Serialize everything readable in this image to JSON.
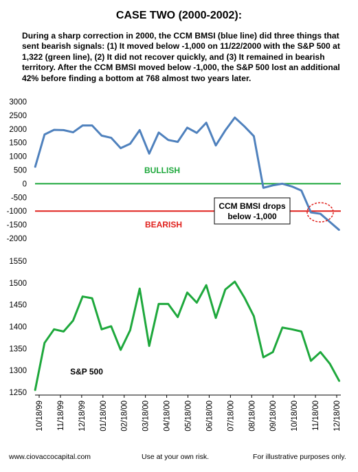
{
  "header": {
    "title": "CASE TWO (2000-2002):",
    "description": "During a sharp correction in 2000, the CCM BMSI (blue line) did three things that sent bearish signals:  (1) It moved below -1,000 on 11/22/2000 with the S&P 500 at 1,322 (green line), (2) It did not recover quickly, and (3) It remained in bearish territory.  After the CCM BMSI moved below -1,000, the S&P 500 lost an additional 42% before finding a bottom at 768 almost two years later."
  },
  "footer": {
    "left": "www.ciovaccocapital.com",
    "center": "Use at your own risk.",
    "right": "For illustrative purposes only."
  },
  "colors": {
    "bmsi_line": "#4f81bd",
    "sp500_line": "#1ea83c",
    "zero_line": "#1ea83c",
    "bearish_line": "#e0201c",
    "bullish_text": "#1ea83c",
    "bearish_text": "#e0201c"
  },
  "chart_data": [
    {
      "type": "line",
      "series": [
        {
          "values": [
            600,
            1800,
            1970,
            1960,
            1880,
            2130,
            2130,
            1760,
            1680,
            1300,
            1460,
            1960,
            1100,
            1870,
            1600,
            1530,
            2050,
            1860,
            2230,
            1400,
            1950,
            2420,
            2100,
            1740,
            -150,
            -60,
            0,
            -100,
            -250,
            -1050,
            -1100,
            -1400,
            -1700
          ]
        }
      ],
      "ylim": [
        -2000,
        3000
      ],
      "yticks": [
        "3000",
        "2500",
        "2000",
        "1500",
        "1000",
        "500",
        "0",
        "-500",
        "-1000",
        "-1500",
        "-2000"
      ],
      "reference_lines": [
        {
          "value": 0,
          "label": "BULLISH"
        },
        {
          "value": -1000,
          "label": "BEARISH"
        }
      ],
      "annotation": {
        "text_line1": "CCM BMSI drops",
        "text_line2": "below -1,000"
      }
    },
    {
      "type": "line",
      "series": [
        {
          "name": "S&P 500",
          "values": [
            1254,
            1363,
            1394,
            1389,
            1414,
            1469,
            1465,
            1394,
            1401,
            1347,
            1392,
            1487,
            1356,
            1452,
            1452,
            1422,
            1478,
            1455,
            1495,
            1420,
            1485,
            1503,
            1467,
            1424,
            1330,
            1342,
            1398,
            1394,
            1389,
            1322,
            1342,
            1315,
            1275
          ]
        }
      ],
      "ylim": [
        1250,
        1550
      ],
      "yticks": [
        "1550",
        "1500",
        "1450",
        "1400",
        "1350",
        "1300",
        "1250"
      ]
    }
  ],
  "x_axis": {
    "tick_labels": [
      "10/18/99",
      "11/18/99",
      "12/18/99",
      "01/18/00",
      "02/18/00",
      "03/18/00",
      "04/18/00",
      "05/18/00",
      "06/18/00",
      "07/18/00",
      "08/18/00",
      "09/18/00",
      "10/18/00",
      "11/18/00",
      "12/18/00"
    ]
  }
}
